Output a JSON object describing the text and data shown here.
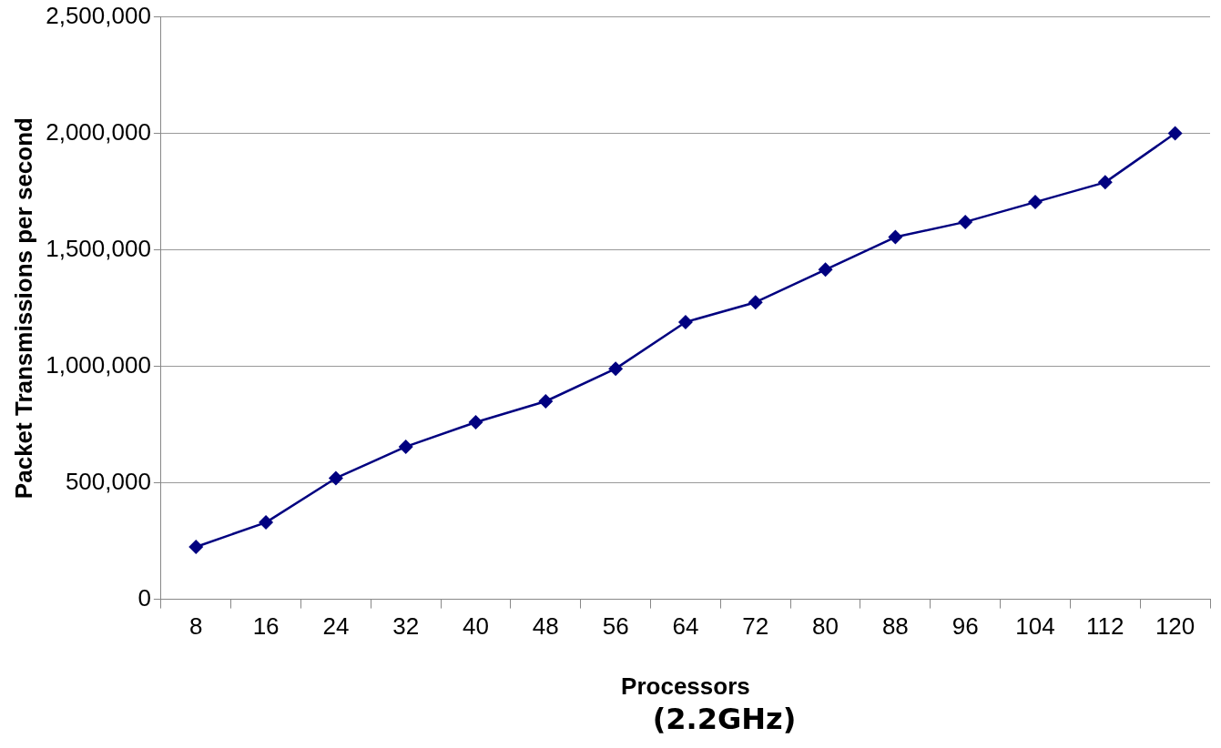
{
  "chart_data": {
    "type": "line",
    "xlabel": "Processors",
    "ylabel": "Packet Transmissions per second",
    "annotations": [
      "(2.2GHz)"
    ],
    "categories": [
      "8",
      "16",
      "24",
      "32",
      "40",
      "48",
      "56",
      "64",
      "72",
      "80",
      "88",
      "96",
      "104",
      "112",
      "120"
    ],
    "series": [
      {
        "color": "#000080",
        "values": [
          225000,
          330000,
          520000,
          655000,
          760000,
          850000,
          990000,
          1190000,
          1275000,
          1415000,
          1555000,
          1620000,
          1705000,
          1790000,
          2000000
        ]
      }
    ],
    "ylim": [
      0,
      2500000
    ],
    "yticks": [
      {
        "value": 0,
        "label": "0"
      },
      {
        "value": 500000,
        "label": "500,000"
      },
      {
        "value": 1000000,
        "label": "1,000,000"
      },
      {
        "value": 1500000,
        "label": "1,500,000"
      },
      {
        "value": 2000000,
        "label": "2,000,000"
      },
      {
        "value": 2500000,
        "label": "2,500,000"
      }
    ],
    "grid": "y",
    "legend": false,
    "marker": "diamond",
    "line_style": "solid"
  }
}
